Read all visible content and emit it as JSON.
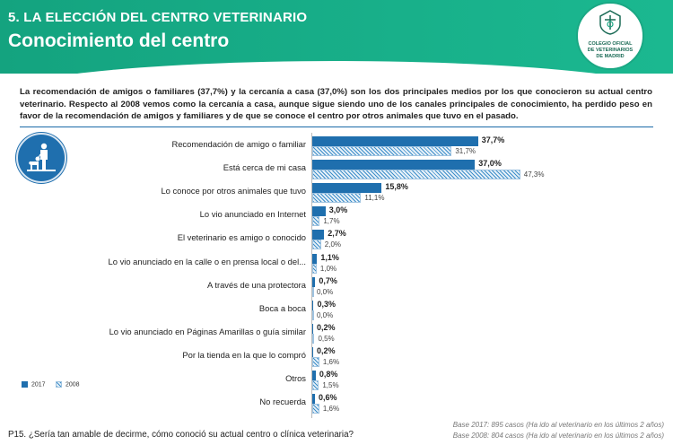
{
  "header": {
    "section_title": "5. LA ELECCIÓN DEL CENTRO VETERINARIO",
    "page_title": "Conocimiento del centro",
    "logo_text_1": "COLEGIO OFICIAL",
    "logo_text_2": "DE VETERINARIOS",
    "logo_text_3": "DE MADRID",
    "brand_color": "#18a982",
    "logo_icon": "veterinary-college-seal-icon"
  },
  "intro_text": "La recomendación de amigos o familiares (37,7%) y la cercanía a casa (37,0%) son los dos principales medios por los que conocieron su actual centro veterinario. Respecto al 2008 vemos como la cercanía a casa, aunque sigue siendo uno de los canales principales de conocimiento, ha perdido peso en favor de la recomendación de amigos y familiares y de que se conoce el centro por otros animales que tuvo en el pasado.",
  "badge_icon": "person-with-dog-icon",
  "chart_data": {
    "type": "bar",
    "orientation": "horizontal",
    "categories": [
      "Recomendación de amigo o familiar",
      "Está cerca de mi casa",
      "Lo conoce por otros animales que tuvo",
      "Lo vio anunciado en Internet",
      "El veterinario es amigo o conocido",
      "Lo vio anunciado en la calle o en prensa local o del...",
      "A través de una protectora",
      "Boca a boca",
      "Lo vio anunciado en Páginas Amarillas o guía similar",
      "Por la tienda en la que lo compró",
      "Otros",
      "No recuerda"
    ],
    "series": [
      {
        "name": "2017",
        "color": "#1f6fae",
        "values": [
          37.7,
          37.0,
          15.8,
          3.0,
          2.7,
          1.1,
          0.7,
          0.3,
          0.2,
          0.2,
          0.8,
          0.6
        ],
        "labels": [
          "37,7%",
          "37,0%",
          "15,8%",
          "3,0%",
          "2,7%",
          "1,1%",
          "0,7%",
          "0,3%",
          "0,2%",
          "0,2%",
          "0,8%",
          "0,6%"
        ]
      },
      {
        "name": "2008",
        "color": "#9fc3e0",
        "values": [
          31.7,
          47.3,
          11.1,
          1.7,
          2.0,
          1.0,
          0.0,
          0.0,
          0.5,
          1.6,
          1.5,
          1.6
        ],
        "labels": [
          "31,7%",
          "47,3%",
          "11,1%",
          "1,7%",
          "2,0%",
          "1,0%",
          "0,0%",
          "0,0%",
          "0,5%",
          "1,6%",
          "1,5%",
          "1,6%"
        ]
      }
    ],
    "xlim": [
      0,
      50
    ],
    "grid": false,
    "legend_position": "bottom-left"
  },
  "question": "P15. ¿Sería tan amable de decirme, cómo conoció su actual centro o clínica veterinaria?",
  "base_2017": "Base 2017: 895 casos (Ha ido al veterinario en los últimos 2 años)",
  "base_2008": "Base 2008: 804 casos (Ha ido al veterinario en los últimos 2 años)"
}
